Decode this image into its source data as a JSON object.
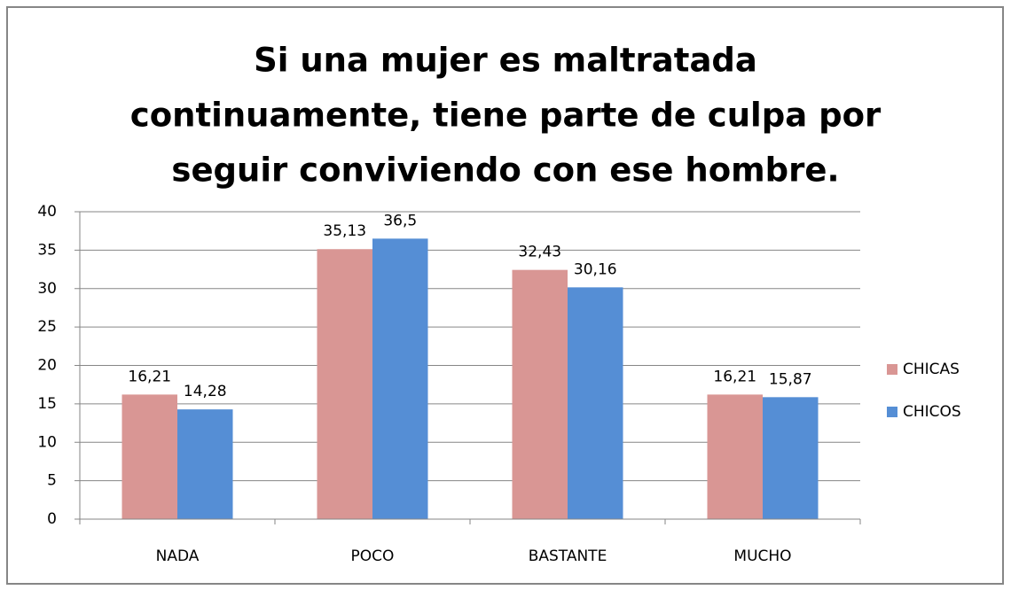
{
  "chart_data": {
    "type": "bar",
    "title": [
      "Si una mujer es maltratada",
      "continuamente, tiene parte de culpa por",
      "seguir conviviendo con ese hombre."
    ],
    "categories": [
      "NADA",
      "POCO",
      "BASTANTE",
      "MUCHO"
    ],
    "series": [
      {
        "name": "CHICAS",
        "color": "#d99694",
        "values": [
          16.21,
          35.13,
          32.43,
          16.21
        ],
        "value_labels": [
          "16,21",
          "35,13",
          "32,43",
          "16,21"
        ]
      },
      {
        "name": "CHICOS",
        "color": "#558ed5",
        "values": [
          14.28,
          36.5,
          30.16,
          15.87
        ],
        "value_labels": [
          "14,28",
          "36,5",
          "30,16",
          "15,87"
        ]
      }
    ],
    "ylim": [
      0,
      40
    ],
    "yticks": [
      0,
      5,
      10,
      15,
      20,
      25,
      30,
      35,
      40
    ],
    "grid": true,
    "legend": "right"
  }
}
